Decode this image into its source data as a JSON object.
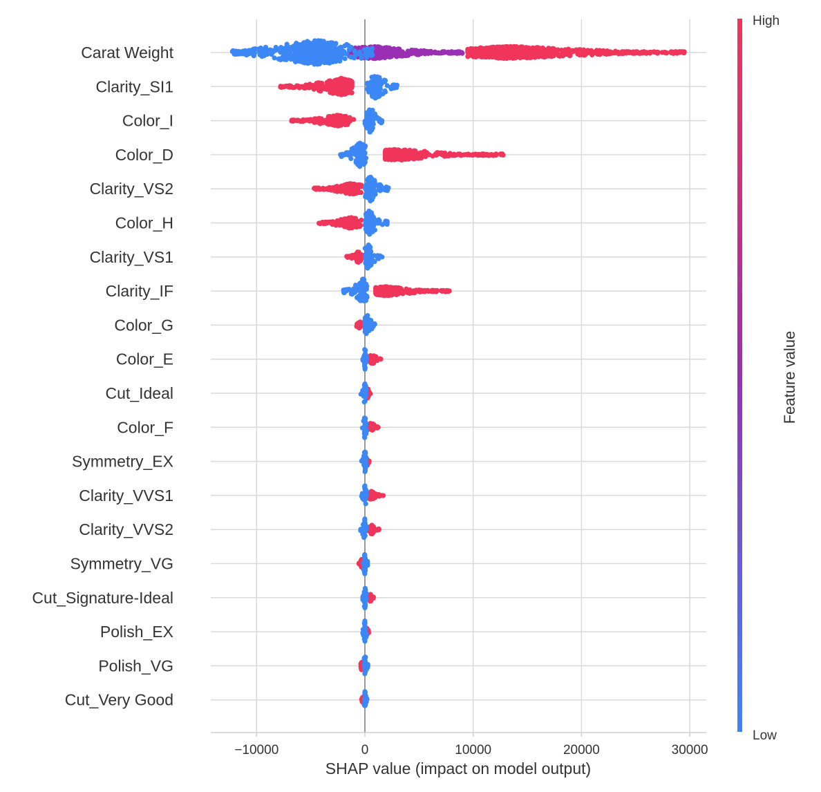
{
  "chart_data": {
    "type": "scatter",
    "subtype": "shap-beeswarm",
    "title": "",
    "xlabel": "SHAP value (impact on model output)",
    "ylabel": "",
    "xlim": [
      -14000,
      31500
    ],
    "xticks": [
      -10000,
      0,
      10000,
      20000,
      30000
    ],
    "xtick_labels": [
      "−10000",
      "0",
      "10000",
      "20000",
      "30000"
    ],
    "grid": "horizontal per feature + vertical at ticks",
    "colorbar": {
      "title": "Feature value",
      "high_label": "High",
      "low_label": "Low",
      "low_color": "#3b87f5",
      "mid_color": "#9b2fb3",
      "high_color": "#f0355a"
    },
    "features": [
      {
        "name": "Carat Weight",
        "low": {
          "min": -12400,
          "max": 800,
          "peak": -4500,
          "amp": 18
        },
        "mid": {
          "min": -1500,
          "max": 9000,
          "peak": 800,
          "amp": 9
        },
        "high": {
          "min": 9500,
          "max": 29500,
          "peak": 13500,
          "amp": 9
        }
      },
      {
        "name": "Clarity_SI1",
        "low": {
          "min": 200,
          "max": 3000,
          "peak": 1000,
          "amp": 18
        },
        "high": {
          "min": -7800,
          "max": -1200,
          "peak": -2200,
          "amp": 12
        }
      },
      {
        "name": "Color_I",
        "low": {
          "min": 0,
          "max": 2000,
          "peak": 500,
          "amp": 18
        },
        "high": {
          "min": -6800,
          "max": -1000,
          "peak": -2500,
          "amp": 8
        }
      },
      {
        "name": "Color_D",
        "low": {
          "min": -2300,
          "max": 200,
          "peak": -400,
          "amp": 18
        },
        "high": {
          "min": 1900,
          "max": 12800,
          "peak": 3000,
          "amp": 8
        }
      },
      {
        "name": "Clarity_VS2",
        "low": {
          "min": 0,
          "max": 2200,
          "peak": 500,
          "amp": 18
        },
        "high": {
          "min": -4700,
          "max": -300,
          "peak": -1200,
          "amp": 8
        }
      },
      {
        "name": "Color_H",
        "low": {
          "min": 0,
          "max": 2200,
          "peak": 400,
          "amp": 18
        },
        "high": {
          "min": -4300,
          "max": -300,
          "peak": -1300,
          "amp": 8
        }
      },
      {
        "name": "Clarity_VS1",
        "low": {
          "min": 0,
          "max": 1600,
          "peak": 300,
          "amp": 18
        },
        "high": {
          "min": -1700,
          "max": -200,
          "peak": -600,
          "amp": 8
        }
      },
      {
        "name": "Clarity_IF",
        "low": {
          "min": -2000,
          "max": 200,
          "peak": -200,
          "amp": 18
        },
        "high": {
          "min": 1000,
          "max": 7800,
          "peak": 2000,
          "amp": 7
        }
      },
      {
        "name": "Color_G",
        "low": {
          "min": 0,
          "max": 1200,
          "peak": 200,
          "amp": 16
        },
        "high": {
          "min": -800,
          "max": -100,
          "peak": -500,
          "amp": 6
        }
      },
      {
        "name": "Color_E",
        "low": {
          "min": -200,
          "max": 150,
          "peak": 0,
          "amp": 16
        },
        "high": {
          "min": 300,
          "max": 1600,
          "peak": 700,
          "amp": 7
        }
      },
      {
        "name": "Cut_Ideal",
        "low": {
          "min": -400,
          "max": 150,
          "peak": 0,
          "amp": 16
        },
        "high": {
          "min": 100,
          "max": 500,
          "peak": 250,
          "amp": 8
        }
      },
      {
        "name": "Color_F",
        "low": {
          "min": -300,
          "max": 200,
          "peak": 0,
          "amp": 16
        },
        "high": {
          "min": 300,
          "max": 1300,
          "peak": 600,
          "amp": 7
        }
      },
      {
        "name": "Symmetry_EX",
        "low": {
          "min": -300,
          "max": 150,
          "peak": 0,
          "amp": 16
        },
        "high": {
          "min": 50,
          "max": 400,
          "peak": 200,
          "amp": 7
        }
      },
      {
        "name": "Clarity_VVS1",
        "low": {
          "min": -300,
          "max": 200,
          "peak": 0,
          "amp": 16
        },
        "high": {
          "min": 300,
          "max": 1700,
          "peak": 600,
          "amp": 6
        }
      },
      {
        "name": "Clarity_VVS2",
        "low": {
          "min": -400,
          "max": 200,
          "peak": 0,
          "amp": 16
        },
        "high": {
          "min": 200,
          "max": 1300,
          "peak": 600,
          "amp": 7
        }
      },
      {
        "name": "Symmetry_VG",
        "low": {
          "min": -200,
          "max": 300,
          "peak": 0,
          "amp": 16
        },
        "high": {
          "min": -600,
          "max": -100,
          "peak": -300,
          "amp": 6
        }
      },
      {
        "name": "Cut_Signature-Ideal",
        "low": {
          "min": -200,
          "max": 200,
          "peak": 0,
          "amp": 16
        },
        "high": {
          "min": 200,
          "max": 800,
          "peak": 500,
          "amp": 6
        }
      },
      {
        "name": "Polish_EX",
        "low": {
          "min": -200,
          "max": 200,
          "peak": 0,
          "amp": 16
        },
        "high": {
          "min": 50,
          "max": 400,
          "peak": 200,
          "amp": 5
        }
      },
      {
        "name": "Polish_VG",
        "low": {
          "min": -100,
          "max": 300,
          "peak": 0,
          "amp": 16
        },
        "high": {
          "min": -500,
          "max": -50,
          "peak": -300,
          "amp": 6
        }
      },
      {
        "name": "Cut_Very Good",
        "low": {
          "min": -100,
          "max": 200,
          "peak": 0,
          "amp": 16
        },
        "high": {
          "min": -300,
          "max": -50,
          "peak": -200,
          "amp": 4
        }
      }
    ]
  }
}
